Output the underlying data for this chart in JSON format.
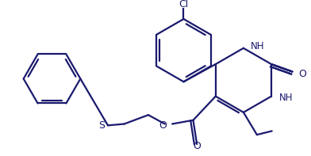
{
  "bg_color": "#ffffff",
  "line_color": "#1a1a6e",
  "line_width": 1.6,
  "figsize": [
    3.92,
    1.97
  ],
  "dpi": 100,
  "xlim": [
    0,
    392
  ],
  "ylim": [
    0,
    197
  ]
}
